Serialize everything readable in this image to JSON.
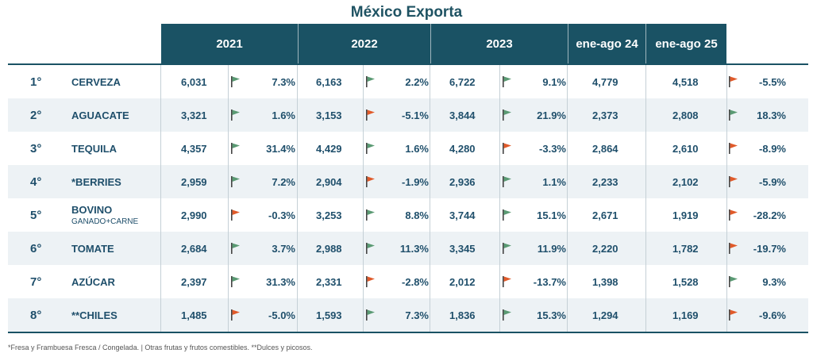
{
  "title": "México Exporta",
  "footnote": "*Fresa y Frambuesa Fresca / Congelada. | Otras frutas y frutos comestibles. **Dulces y picosos.",
  "colors": {
    "header_bg": "#1a5264",
    "text": "#1f4f6b",
    "flag_up": "#5a9a73",
    "flag_down": "#e05a2a"
  },
  "chart_data": {
    "type": "table",
    "title": "México Exporta",
    "columns": [
      "2021",
      "2022",
      "2023",
      "ene-ago 24",
      "ene-ago 25"
    ],
    "rows": [
      {
        "rank": "1°",
        "name": "CERVEZA",
        "sub": "",
        "y2021": "6,031",
        "f2021": "up",
        "p2021": "7.3%",
        "y2022": "6,163",
        "f2022": "up",
        "p2022": "2.2%",
        "y2023": "6,722",
        "f2023": "up",
        "p2023": "9.1%",
        "ea24": "4,779",
        "ea25": "4,518",
        "fchg": "down",
        "pchg": "-5.5%"
      },
      {
        "rank": "2°",
        "name": "AGUACATE",
        "sub": "",
        "y2021": "3,321",
        "f2021": "up",
        "p2021": "1.6%",
        "y2022": "3,153",
        "f2022": "down",
        "p2022": "-5.1%",
        "y2023": "3,844",
        "f2023": "up",
        "p2023": "21.9%",
        "ea24": "2,373",
        "ea25": "2,808",
        "fchg": "up",
        "pchg": "18.3%"
      },
      {
        "rank": "3°",
        "name": "TEQUILA",
        "sub": "",
        "y2021": "4,357",
        "f2021": "up",
        "p2021": "31.4%",
        "y2022": "4,429",
        "f2022": "up",
        "p2022": "1.6%",
        "y2023": "4,280",
        "f2023": "down",
        "p2023": "-3.3%",
        "ea24": "2,864",
        "ea25": "2,610",
        "fchg": "down",
        "pchg": "-8.9%"
      },
      {
        "rank": "4°",
        "name": "*BERRIES",
        "sub": "",
        "y2021": "2,959",
        "f2021": "up",
        "p2021": "7.2%",
        "y2022": "2,904",
        "f2022": "down",
        "p2022": "-1.9%",
        "y2023": "2,936",
        "f2023": "up",
        "p2023": "1.1%",
        "ea24": "2,233",
        "ea25": "2,102",
        "fchg": "down",
        "pchg": "-5.9%"
      },
      {
        "rank": "5°",
        "name": "BOVINO",
        "sub": "GANADO+CARNE",
        "y2021": "2,990",
        "f2021": "down",
        "p2021": "-0.3%",
        "y2022": "3,253",
        "f2022": "up",
        "p2022": "8.8%",
        "y2023": "3,744",
        "f2023": "up",
        "p2023": "15.1%",
        "ea24": "2,671",
        "ea25": "1,919",
        "fchg": "down",
        "pchg": "-28.2%"
      },
      {
        "rank": "6°",
        "name": "TOMATE",
        "sub": "",
        "y2021": "2,684",
        "f2021": "up",
        "p2021": "3.7%",
        "y2022": "2,988",
        "f2022": "up",
        "p2022": "11.3%",
        "y2023": "3,345",
        "f2023": "up",
        "p2023": "11.9%",
        "ea24": "2,220",
        "ea25": "1,782",
        "fchg": "down",
        "pchg": "-19.7%"
      },
      {
        "rank": "7°",
        "name": "AZÚCAR",
        "sub": "",
        "y2021": "2,397",
        "f2021": "up",
        "p2021": "31.3%",
        "y2022": "2,331",
        "f2022": "down",
        "p2022": "-2.8%",
        "y2023": "2,012",
        "f2023": "down",
        "p2023": "-13.7%",
        "ea24": "1,398",
        "ea25": "1,528",
        "fchg": "up",
        "pchg": "9.3%"
      },
      {
        "rank": "8°",
        "name": "**CHILES",
        "sub": "",
        "y2021": "1,485",
        "f2021": "down",
        "p2021": "-5.0%",
        "y2022": "1,593",
        "f2022": "up",
        "p2022": "7.3%",
        "y2023": "1,836",
        "f2023": "up",
        "p2023": "15.3%",
        "ea24": "1,294",
        "ea25": "1,169",
        "fchg": "down",
        "pchg": "-9.6%"
      }
    ]
  }
}
